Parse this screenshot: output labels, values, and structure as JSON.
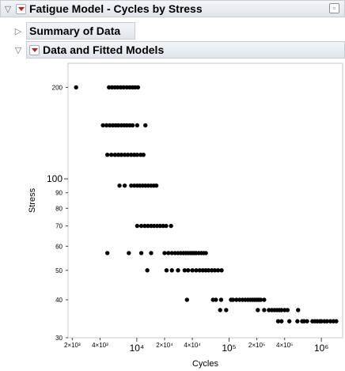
{
  "report": {
    "title": "Fatigue Model - Cycles by Stress",
    "summary_title": "Summary of Data",
    "fitted_title": "Data and Fitted Models"
  },
  "icons": {
    "collapse": "triangle-down-icon",
    "expand": "triangle-right-icon",
    "menu": "red-triangle-menu-icon",
    "window": "window-corner-icon"
  },
  "colors": {
    "menu_triangle": "#d0171c",
    "points": "#000000",
    "frame": "#c8c8c8"
  },
  "chart_data": {
    "type": "scatter",
    "xlabel": "Cycles",
    "ylabel": "Stress",
    "x_scale": "log",
    "y_scale": "log",
    "xlim": [
      1800,
      1700000
    ],
    "ylim": [
      30,
      240
    ],
    "grid": false,
    "legend": "none",
    "x_ticks": [
      {
        "value": 2000,
        "label": "2×10³",
        "major": false
      },
      {
        "value": 4000,
        "label": "4×10³",
        "major": false
      },
      {
        "value": 10000,
        "label": "10⁴",
        "major": true
      },
      {
        "value": 20000,
        "label": "2×10⁴",
        "major": false
      },
      {
        "value": 40000,
        "label": "4×10⁴",
        "major": false
      },
      {
        "value": 100000,
        "label": "10⁵",
        "major": true
      },
      {
        "value": 200000,
        "label": "2×10⁵",
        "major": false
      },
      {
        "value": 400000,
        "label": "4×10⁵",
        "major": false
      },
      {
        "value": 1000000,
        "label": "10⁶",
        "major": true
      }
    ],
    "y_ticks": [
      {
        "value": 30,
        "label": "30",
        "major": false
      },
      {
        "value": 40,
        "label": "40",
        "major": false
      },
      {
        "value": 50,
        "label": "50",
        "major": false
      },
      {
        "value": 60,
        "label": "60",
        "major": false
      },
      {
        "value": 70,
        "label": "70",
        "major": false
      },
      {
        "value": 80,
        "label": "80",
        "major": false
      },
      {
        "value": 90,
        "label": "90",
        "major": false
      },
      {
        "value": 100,
        "label": "100",
        "major": true
      },
      {
        "value": 200,
        "label": "200",
        "major": false
      }
    ],
    "series": [
      {
        "stress": 200,
        "cycles": [
          2200,
          5000,
          5400,
          5800,
          6200,
          6700,
          7200,
          7800,
          8400,
          9000,
          9600,
          10300
        ]
      },
      {
        "stress": 150,
        "cycles": [
          4300,
          4700,
          5100,
          5500,
          5900,
          6300,
          6800,
          7300,
          7800,
          8400,
          9000,
          10100,
          12400
        ]
      },
      {
        "stress": 120,
        "cycles": [
          4800,
          5300,
          5800,
          6300,
          6800,
          7400,
          8000,
          8700,
          9400,
          10100,
          11000,
          11800
        ]
      },
      {
        "stress": 95,
        "cycles": [
          6500,
          7400,
          8700,
          9400,
          10100,
          10800,
          11600,
          12400,
          13300,
          14300,
          15300,
          16300
        ]
      },
      {
        "stress": 70,
        "cycles": [
          10100,
          11200,
          12200,
          13200,
          14300,
          15400,
          16600,
          17900,
          19300,
          20800,
          23500
        ]
      },
      {
        "stress": 57,
        "cycles": [
          4800,
          8200,
          11200,
          14300,
          20000,
          22000,
          24000,
          26000,
          28000,
          30000,
          32000,
          34000,
          36000,
          38000,
          40000,
          42000,
          44000,
          47000,
          50000,
          53000,
          56000
        ]
      },
      {
        "stress": 50,
        "cycles": [
          13000,
          21000,
          24000,
          28000,
          33000,
          36000,
          40000,
          44000,
          48000,
          52000,
          56000,
          60000,
          65000,
          70000,
          76000,
          83000
        ]
      },
      {
        "stress": 40,
        "cycles": [
          35000,
          67000,
          72000,
          82000,
          105000,
          110000,
          120000,
          130000,
          140000,
          150000,
          160000,
          170000,
          180000,
          190000,
          200000,
          210000,
          220000,
          240000
        ]
      },
      {
        "stress": 37,
        "cycles": [
          80000,
          93000,
          205000,
          240000,
          270000,
          290000,
          310000,
          330000,
          350000,
          370000,
          400000,
          430000,
          560000
        ]
      },
      {
        "stress": 34,
        "cycles": [
          340000,
          370000,
          450000,
          550000,
          620000,
          650000,
          700000,
          800000,
          850000,
          900000,
          960000,
          1000000,
          1080000,
          1150000,
          1250000,
          1350000,
          1450000
        ]
      }
    ]
  }
}
